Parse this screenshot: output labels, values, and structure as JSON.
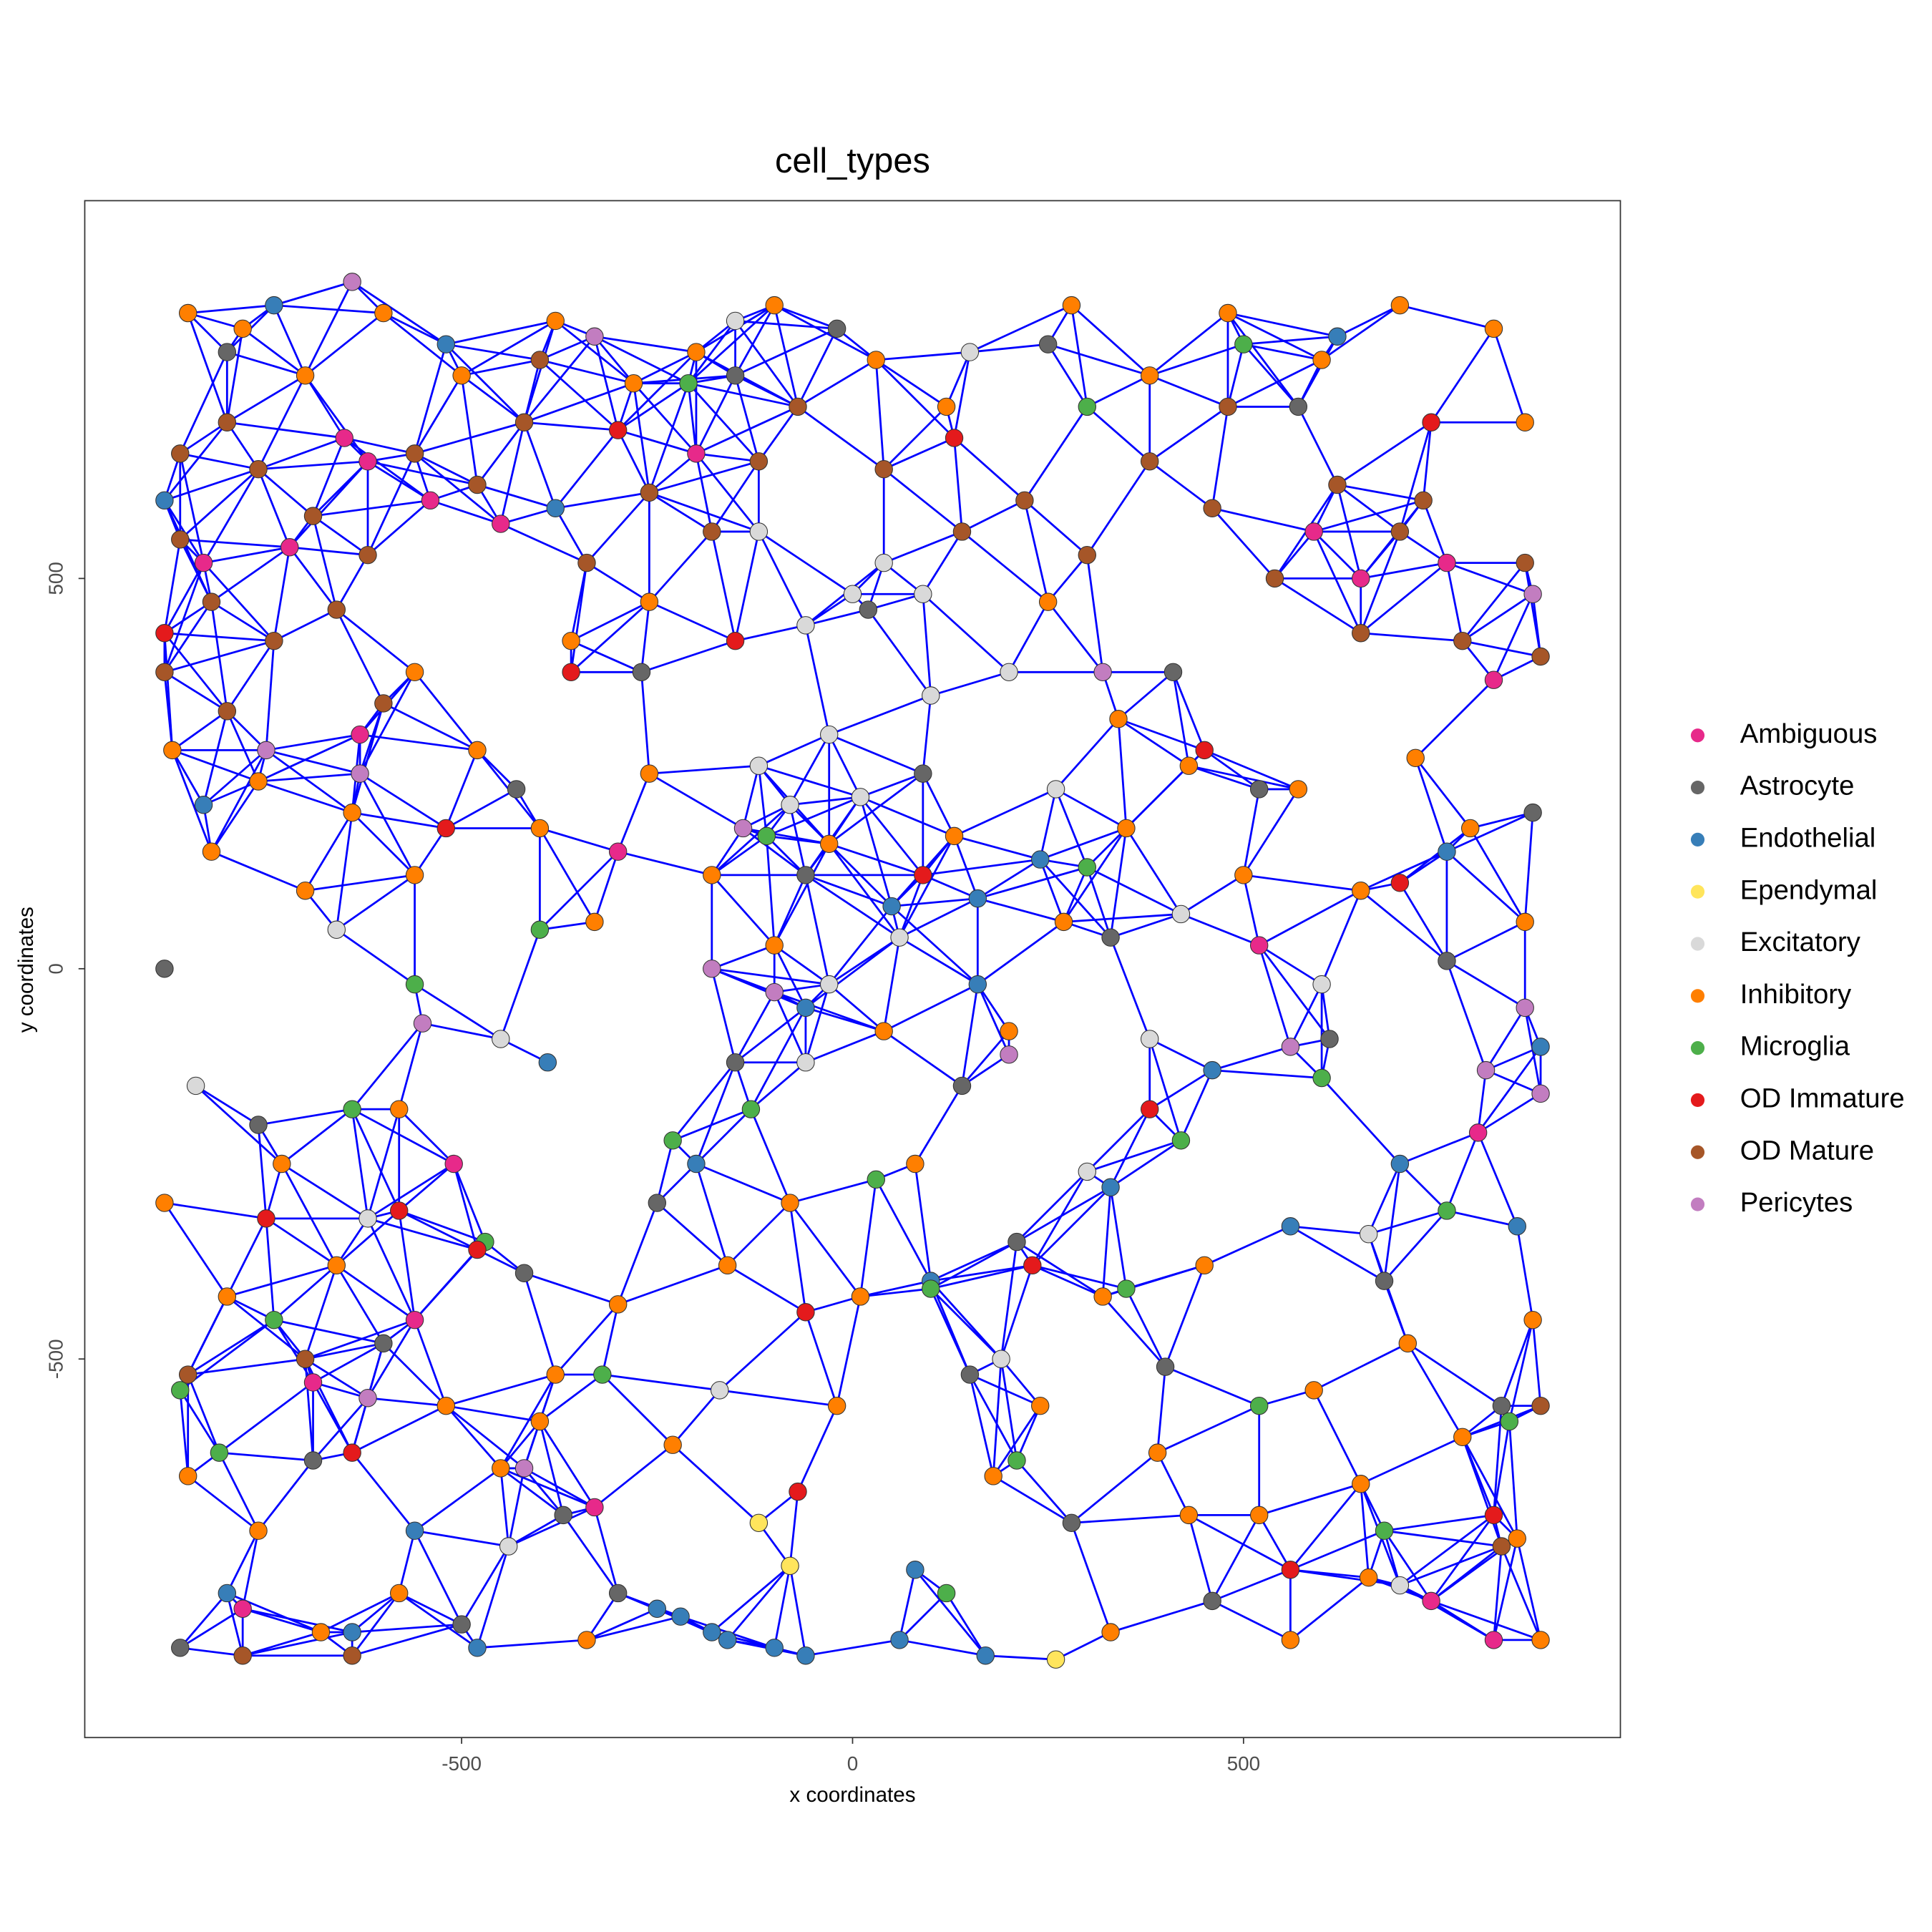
{
  "chart_data": {
    "type": "scatter",
    "title": "cell_types",
    "x_label": "x coordinates",
    "y_label": "y coordinates",
    "xlim": [
      -982,
      982
    ],
    "ylim": [
      -985,
      984
    ],
    "xticks": [
      -500,
      0,
      500
    ],
    "yticks": [
      -500,
      0,
      500
    ],
    "series": [
      {
        "name": "Ambiguous",
        "color": "#E7298A",
        "x": [
          -650,
          -620,
          -540,
          -450,
          -200,
          -830,
          -720,
          -630,
          -560,
          -780,
          -330,
          -690,
          590,
          650,
          760,
          820,
          800,
          740,
          820,
          520,
          -300,
          -510
        ],
        "values": [
          680,
          650,
          600,
          570,
          660,
          520,
          540,
          300,
          -450,
          -820,
          -690,
          -530,
          560,
          500,
          520,
          370,
          -210,
          -810,
          -860,
          30,
          150,
          -250
        ]
      },
      {
        "name": "Astrocyte",
        "color": "#666666",
        "x": [
          -880,
          -860,
          -760,
          -690,
          -600,
          -500,
          -420,
          -370,
          -300,
          -250,
          -150,
          -60,
          20,
          90,
          140,
          210,
          280,
          330,
          400,
          460,
          520,
          610,
          680,
          760,
          830,
          870,
          -20,
          -150,
          250,
          570,
          -800,
          -430,
          -270,
          410,
          150
        ],
        "values": [
          0,
          -870,
          -200,
          -630,
          -480,
          -840,
          -390,
          -700,
          -800,
          -300,
          -120,
          120,
          460,
          250,
          -150,
          -350,
          -710,
          40,
          -510,
          -810,
          230,
          -90,
          -400,
          10,
          -560,
          200,
          820,
          760,
          800,
          720,
          790,
          230,
          380,
          380,
          -520
        ]
      },
      {
        "name": "Endothelial",
        "color": "#377EB8",
        "x": [
          -880,
          -830,
          -800,
          -640,
          -560,
          -480,
          -390,
          -250,
          -220,
          -180,
          -160,
          -60,
          -100,
          80,
          60,
          170,
          -60,
          50,
          160,
          240,
          330,
          460,
          560,
          700,
          880,
          850,
          760,
          620,
          -740,
          -520,
          -380,
          160,
          -200,
          100
        ],
        "values": [
          600,
          210,
          -800,
          -850,
          -720,
          -870,
          -120,
          -820,
          -830,
          -850,
          -860,
          -880,
          -870,
          -770,
          -860,
          -880,
          -50,
          80,
          90,
          140,
          -280,
          -130,
          -330,
          -250,
          -100,
          -330,
          150,
          810,
          850,
          800,
          590,
          -20,
          -250,
          -400
        ]
      },
      {
        "name": "Ependymal",
        "color": "#FFE55C",
        "x": [
          -120,
          -80,
          260
        ],
        "values": [
          -710,
          -765,
          -885
        ]
      },
      {
        "name": "Excitatory",
        "color": "#D9D9D9",
        "x": [
          0,
          40,
          -60,
          -120,
          90,
          -30,
          -120,
          -80,
          10,
          100,
          60,
          -30,
          200,
          260,
          -60,
          -450,
          -620,
          -840,
          -660,
          420,
          380,
          600,
          660,
          700,
          190,
          -170,
          -440,
          150,
          -150,
          300
        ],
        "values": [
          480,
          520,
          440,
          560,
          480,
          300,
          260,
          210,
          220,
          350,
          40,
          -20,
          380,
          230,
          -120,
          -90,
          -320,
          -150,
          50,
          70,
          -90,
          -20,
          -340,
          -790,
          -500,
          -540,
          -740,
          790,
          830,
          -260
        ]
      },
      {
        "name": "Inhibitory",
        "color": "#FF7F00",
        "x": [
          -850,
          -780,
          -700,
          -600,
          -500,
          -380,
          -280,
          -200,
          -100,
          30,
          120,
          280,
          380,
          480,
          600,
          700,
          820,
          860,
          -870,
          -820,
          -760,
          -700,
          -640,
          -560,
          -480,
          -400,
          -330,
          -260,
          -180,
          -100,
          -30,
          40,
          130,
          200,
          270,
          350,
          430,
          500,
          570,
          650,
          720,
          790,
          860,
          -880,
          -800,
          -730,
          -660,
          -580,
          -520,
          -450,
          -380,
          -300,
          -230,
          -160,
          -80,
          10,
          80,
          180,
          240,
          320,
          390,
          450,
          520,
          590,
          650,
          710,
          780,
          850,
          870,
          -850,
          -760,
          -680,
          -580,
          -400,
          -340,
          330,
          430,
          560,
          660,
          880,
          -20,
          -260,
          -360,
          250,
          340,
          -560
        ],
        "values": [
          840,
          820,
          760,
          840,
          760,
          830,
          750,
          790,
          850,
          780,
          720,
          850,
          760,
          840,
          780,
          850,
          820,
          700,
          280,
          150,
          240,
          100,
          200,
          120,
          280,
          180,
          60,
          250,
          120,
          30,
          160,
          -80,
          170,
          -80,
          60,
          180,
          260,
          120,
          230,
          100,
          270,
          180,
          60,
          -300,
          -420,
          -250,
          -380,
          -180,
          -560,
          -640,
          -520,
          -430,
          -610,
          -380,
          -300,
          -420,
          -250,
          -650,
          -560,
          -420,
          -620,
          -380,
          -700,
          -540,
          -660,
          -480,
          -600,
          -730,
          -450,
          -650,
          -720,
          -850,
          -800,
          -580,
          -860,
          -850,
          -700,
          -860,
          -780,
          -860,
          -560,
          470,
          420,
          470,
          320,
          380
        ]
      },
      {
        "name": "Microglia",
        "color": "#4DAF4A",
        "x": [
          -810,
          -740,
          -640,
          -560,
          -470,
          -400,
          -320,
          -230,
          -130,
          -110,
          30,
          100,
          210,
          300,
          350,
          420,
          520,
          600,
          680,
          760,
          840,
          -210,
          300,
          500,
          -860,
          120
        ],
        "values": [
          -620,
          -450,
          -180,
          -20,
          -350,
          50,
          -520,
          -220,
          -180,
          170,
          -270,
          -410,
          -630,
          130,
          -410,
          -220,
          -560,
          -140,
          -720,
          -310,
          -580,
          750,
          720,
          800,
          -540,
          -800
        ]
      },
      {
        "name": "OD Immature",
        "color": "#E41A1C",
        "x": [
          -880,
          -750,
          -580,
          -520,
          -360,
          -150,
          -60,
          -70,
          130,
          230,
          380,
          450,
          560,
          740,
          820,
          -480,
          -640,
          -300,
          700,
          90
        ],
        "values": [
          430,
          -320,
          -310,
          180,
          380,
          420,
          -440,
          -670,
          680,
          -380,
          -180,
          280,
          -770,
          700,
          -700,
          -360,
          -620,
          690,
          110,
          120
        ]
      },
      {
        "name": "OD Mature",
        "color": "#A65628",
        "x": [
          -860,
          -800,
          -760,
          -690,
          -620,
          -560,
          -480,
          -420,
          -340,
          -260,
          -180,
          -120,
          -70,
          40,
          140,
          220,
          300,
          380,
          460,
          540,
          620,
          700,
          780,
          860,
          880,
          -880,
          -820,
          -740,
          -660,
          -600,
          -860,
          -800,
          730,
          650,
          -850,
          -780,
          -640,
          830,
          880,
          -700,
          480,
          -400
        ],
        "values": [
          660,
          700,
          640,
          580,
          530,
          660,
          620,
          700,
          520,
          610,
          560,
          650,
          720,
          640,
          560,
          600,
          530,
          650,
          590,
          500,
          620,
          560,
          420,
          520,
          400,
          380,
          470,
          420,
          460,
          340,
          550,
          330,
          600,
          430,
          -520,
          -880,
          -880,
          -740,
          -560,
          -500,
          720,
          780
        ]
      },
      {
        "name": "Pericytes",
        "color": "#C27DC0",
        "x": [
          -640,
          -330,
          -750,
          -630,
          -550,
          -420,
          -140,
          -100,
          -180,
          320,
          560,
          860,
          810,
          880,
          870,
          -620,
          200
        ],
        "values": [
          880,
          810,
          280,
          250,
          -70,
          -640,
          180,
          -30,
          0,
          380,
          -100,
          -50,
          -130,
          -160,
          480,
          -550,
          -110
        ]
      }
    ]
  }
}
